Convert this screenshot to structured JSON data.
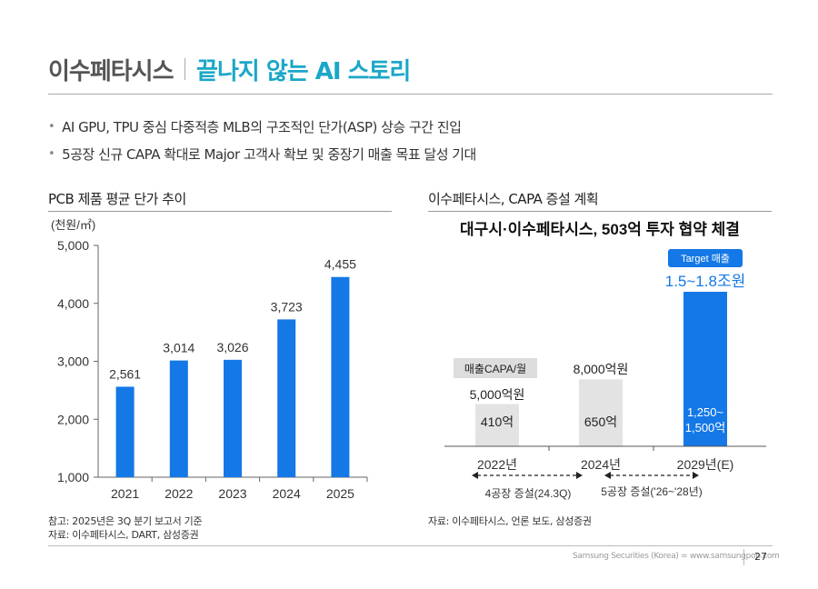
{
  "header": {
    "company": "이수페타시스",
    "title": "끝나지 않는 AI 스토리"
  },
  "bullets": [
    "AI GPU, TPU 중심 다중적층 MLB의 구조적인 단가(ASP) 상승 구간 진입",
    "5공장 신규 CAPA 확대로 Major 고객사 확보 및 중장기 매출 목표 달성 기대"
  ],
  "left_section": {
    "title": "PCB 제품 평균 단가 추이",
    "notes": [
      "참고: 2025년은 3Q 분기 보고서 기준",
      "자료: 이수페타시스, DART, 삼성증권"
    ]
  },
  "right_section": {
    "title": "이수페타시스, CAPA 증설 계획",
    "notes": [
      "자료: 이수페타시스, 언론 보도, 삼성증권"
    ]
  },
  "chart_data": [
    {
      "type": "bar",
      "title": "PCB 제품 평균 단가 추이",
      "unit_label": "(천원/㎡)",
      "categories": [
        "2021",
        "2022",
        "2023",
        "2024",
        "2025"
      ],
      "values": [
        2561,
        3014,
        3026,
        3723,
        4455
      ],
      "value_labels": [
        "2,561",
        "3,014",
        "3,026",
        "3,723",
        "4,455"
      ],
      "ylim": [
        1000,
        5000
      ],
      "yticks": [
        1000,
        2000,
        3000,
        4000,
        5000
      ],
      "ytick_labels": [
        "1,000",
        "2,000",
        "3,000",
        "4,000",
        "5,000"
      ],
      "bar_color": "#1478e6"
    },
    {
      "type": "bar",
      "title": "대구시·이수페타시스, 503억 투자 협약 체결",
      "capa_label": "매출CAPA/월",
      "categories": [
        "2022년",
        "2024년",
        "2029년(E)"
      ],
      "capa_values": [
        410,
        650,
        1500
      ],
      "capa_labels": [
        "410억",
        "650억",
        "1,250~\n1,500억"
      ],
      "revenue_labels": [
        "5,000억원",
        "8,000억원",
        ""
      ],
      "target_badge": "Target 매출",
      "target_value": "1.5~1.8조원",
      "expansions": [
        "4공장 증설(24.3Q)",
        "5공장 증설('26~'28년)"
      ],
      "colors": {
        "existing": "#e3e3e3",
        "target": "#1478e6",
        "badge": "#1478e6"
      }
    }
  ],
  "footer": {
    "brand": "Samsung Securities (Korea) = www.samsungpop.com",
    "page": "27"
  }
}
